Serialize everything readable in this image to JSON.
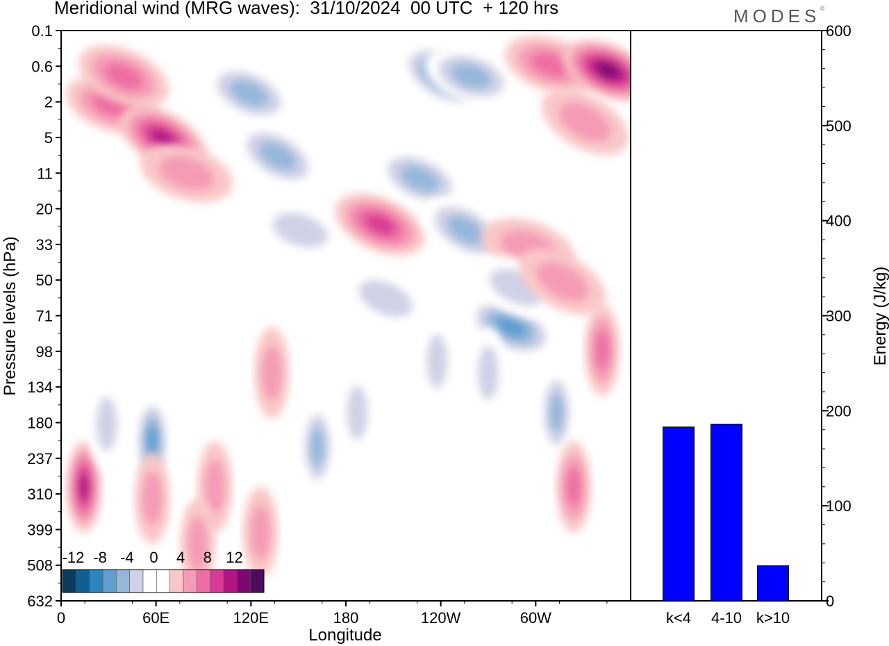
{
  "header": {
    "title": "Meridional wind (MRG waves):  31/10/2024  00 UTC  + 120 hrs",
    "brand": "MODES",
    "brand_mark": "©"
  },
  "chart_data": [
    {
      "type": "heatmap",
      "xlabel": "Longitude",
      "ylabel": "Pressure levels (hPa)",
      "x_tick_labels": [
        "0",
        "60E",
        "120E",
        "180",
        "120W",
        "60W"
      ],
      "y_tick_labels": [
        "0.1",
        "0.6",
        "2",
        "5",
        "11",
        "20",
        "33",
        "50",
        "71",
        "98",
        "134",
        "180",
        "237",
        "310",
        "399",
        "508",
        "632"
      ],
      "colorbar": {
        "labels": [
          "-12",
          "-8",
          "-4",
          "0",
          "4",
          "8",
          "12"
        ],
        "colors": [
          "#0a3b5c",
          "#115f91",
          "#2a86bd",
          "#5e9fd0",
          "#95b7da",
          "#cfd1e6",
          "#ffffff",
          "#ffffff",
          "#f9c7c7",
          "#f59bb6",
          "#ee6ea3",
          "#d93b94",
          "#b01583",
          "#7d0872",
          "#4d0a5f"
        ]
      },
      "features": [
        {
          "lon": 0.09,
          "lev": 0.13,
          "v": 5
        },
        {
          "lon": 0.11,
          "lev": 0.08,
          "v": 6
        },
        {
          "lon": 0.18,
          "lev": 0.19,
          "v": 9
        },
        {
          "lon": 0.22,
          "lev": 0.25,
          "v": 4
        },
        {
          "lon": 0.33,
          "lev": 0.11,
          "v": -5
        },
        {
          "lon": 0.38,
          "lev": 0.22,
          "v": -6
        },
        {
          "lon": 0.42,
          "lev": 0.35,
          "v": -4
        },
        {
          "lon": 0.56,
          "lev": 0.34,
          "v": 7
        },
        {
          "lon": 0.67,
          "lev": 0.08,
          "v": -8
        },
        {
          "lon": 0.72,
          "lev": 0.08,
          "v": -6
        },
        {
          "lon": 0.63,
          "lev": 0.26,
          "v": -5
        },
        {
          "lon": 0.71,
          "lev": 0.35,
          "v": -6
        },
        {
          "lon": 0.86,
          "lev": 0.06,
          "v": 6
        },
        {
          "lon": 0.96,
          "lev": 0.07,
          "v": 11
        },
        {
          "lon": 0.92,
          "lev": 0.16,
          "v": 4
        },
        {
          "lon": 0.82,
          "lev": 0.38,
          "v": 4
        },
        {
          "lon": 0.79,
          "lev": 0.52,
          "v": -7
        },
        {
          "lon": 0.95,
          "lev": 0.56,
          "v": 6
        },
        {
          "lon": 0.16,
          "lev": 0.72,
          "v": -8
        },
        {
          "lon": 0.04,
          "lev": 0.8,
          "v": 9
        },
        {
          "lon": 0.87,
          "lev": 0.67,
          "v": -5
        },
        {
          "lon": 0.9,
          "lev": 0.8,
          "v": 5
        },
        {
          "lon": 0.35,
          "lev": 0.88,
          "v": 4
        },
        {
          "lon": 0.16,
          "lev": 0.82,
          "v": 4
        },
        {
          "lon": 0.27,
          "lev": 0.8,
          "v": 4
        },
        {
          "lon": 0.24,
          "lev": 0.9,
          "v": 4
        },
        {
          "lon": 0.45,
          "lev": 0.73,
          "v": -5
        },
        {
          "lon": 0.52,
          "lev": 0.67,
          "v": -4
        },
        {
          "lon": 0.8,
          "lev": 0.45,
          "v": -4
        },
        {
          "lon": 0.08,
          "lev": 0.69,
          "v": -4
        },
        {
          "lon": 0.37,
          "lev": 0.6,
          "v": 4
        },
        {
          "lon": 0.57,
          "lev": 0.47,
          "v": -4
        },
        {
          "lon": 0.88,
          "lev": 0.44,
          "v": 4
        },
        {
          "lon": 0.66,
          "lev": 0.58,
          "v": -4
        },
        {
          "lon": 0.75,
          "lev": 0.6,
          "v": -4
        }
      ]
    },
    {
      "type": "bar",
      "categories": [
        "k<4",
        "4-10",
        "k>10"
      ],
      "values": [
        183,
        186,
        37
      ],
      "ylabel": "Energy (J/kg)",
      "ylim": [
        0,
        600
      ],
      "y_tick_labels": [
        "0",
        "100",
        "200",
        "300",
        "400",
        "500",
        "600"
      ],
      "bar_color": "#0000ff"
    }
  ]
}
